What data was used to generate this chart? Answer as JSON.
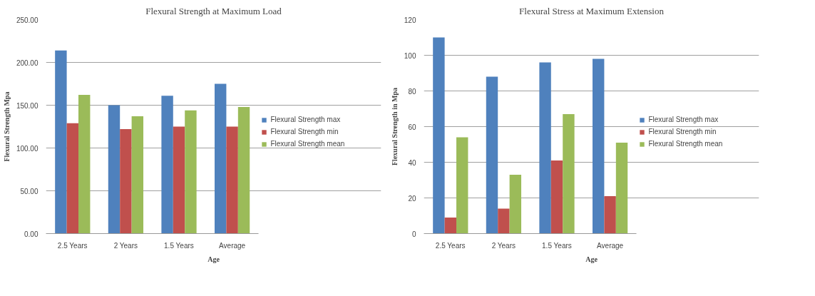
{
  "chart_data": [
    {
      "type": "bar",
      "title": "Flexural Strength at Maximum Load",
      "xlabel": "Age",
      "ylabel": "Flexural Strength Mpa",
      "categories": [
        "2.5 Years",
        "2 Years",
        "1.5 Years",
        "Average"
      ],
      "series": [
        {
          "name": "Flexural Strength max",
          "color": "#4f81bd",
          "values": [
            214,
            150,
            161,
            175
          ]
        },
        {
          "name": "Flexural Strength min",
          "color": "#c0504d",
          "values": [
            129,
            122,
            125,
            125
          ]
        },
        {
          "name": "Flexural Strength mean",
          "color": "#9bbb59",
          "values": [
            162,
            137,
            144,
            148
          ]
        }
      ],
      "ylim": [
        0,
        250
      ],
      "yticks": [
        {
          "value": 0,
          "label": "0.00"
        },
        {
          "value": 50,
          "label": "50.00"
        },
        {
          "value": 100,
          "label": "100.00"
        },
        {
          "value": 150,
          "label": "150.00"
        },
        {
          "value": 200,
          "label": "200.00"
        },
        {
          "value": 250,
          "label": "250.00"
        }
      ],
      "grid": "y",
      "legend": "right"
    },
    {
      "type": "bar",
      "title": "Flexural Stress at Maximum Extension",
      "xlabel": "Age",
      "ylabel": "Flexural Strength in Mpa",
      "categories": [
        "2.5 Years",
        "2 Years",
        "1.5 Years",
        "Average"
      ],
      "series": [
        {
          "name": "Flexural Strength max",
          "color": "#4f81bd",
          "values": [
            110,
            88,
            96,
            98
          ]
        },
        {
          "name": "Flexural Strength min",
          "color": "#c0504d",
          "values": [
            9,
            14,
            41,
            21
          ]
        },
        {
          "name": "Flexural Strength mean",
          "color": "#9bbb59",
          "values": [
            54,
            33,
            67,
            51
          ]
        }
      ],
      "ylim": [
        0,
        120
      ],
      "yticks": [
        0,
        20,
        40,
        60,
        80,
        100,
        120
      ],
      "grid": "y",
      "legend": "right"
    }
  ]
}
